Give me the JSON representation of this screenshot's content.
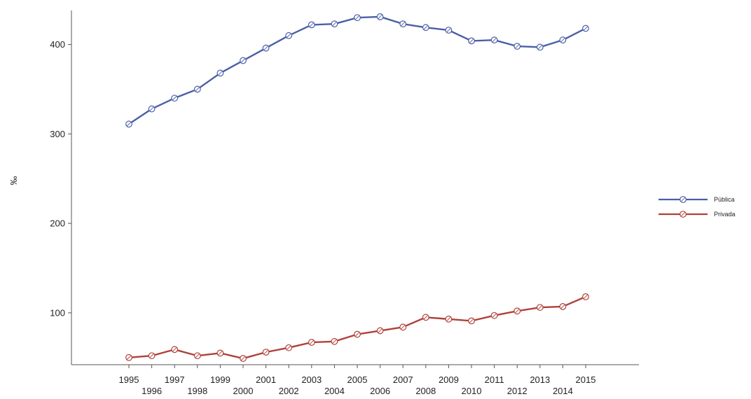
{
  "chart_data": {
    "type": "line",
    "title": "",
    "xlabel": "",
    "ylabel": "‰",
    "x": [
      "1995",
      "1996",
      "1997",
      "1998",
      "1999",
      "2000",
      "2001",
      "2002",
      "2003",
      "2004",
      "2005",
      "2006",
      "2007",
      "2008",
      "2009",
      "2010",
      "2011",
      "2012",
      "2013",
      "2014",
      "2015"
    ],
    "series": [
      {
        "name": "Pública",
        "color": "#4a5fa8",
        "values": [
          311,
          328,
          340,
          350,
          368,
          382,
          396,
          410,
          422,
          423,
          430,
          431,
          423,
          419,
          416,
          404,
          405,
          398,
          397,
          405,
          418
        ]
      },
      {
        "name": "Privada",
        "color": "#b0403a",
        "values": [
          50,
          52,
          59,
          52,
          55,
          49,
          56,
          61,
          67,
          68,
          76,
          80,
          84,
          95,
          93,
          91,
          97,
          102,
          106,
          107,
          118
        ]
      }
    ],
    "y_ticks": [
      100,
      200,
      300,
      400
    ],
    "ylim": [
      42,
      438
    ],
    "grid": false,
    "legend_position": "right"
  }
}
